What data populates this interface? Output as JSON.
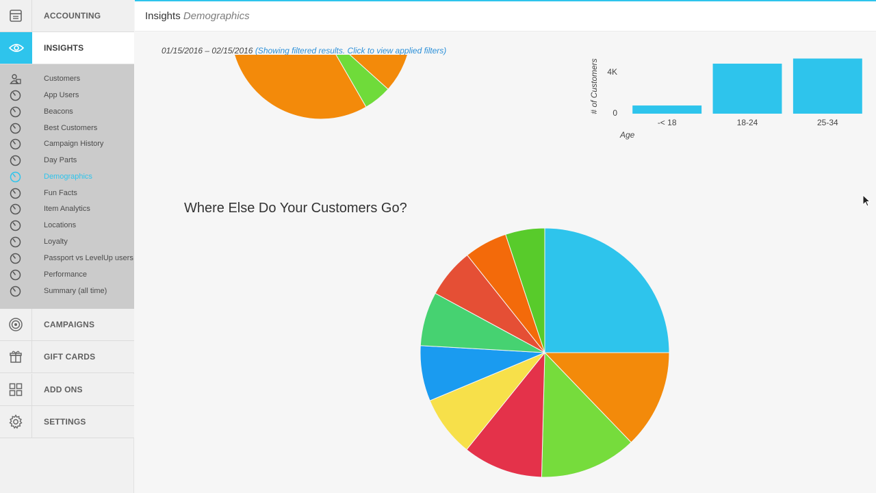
{
  "sidebar": {
    "main_items": [
      {
        "label": "ACCOUNTING",
        "icon": "calculator-icon"
      },
      {
        "label": "INSIGHTS",
        "icon": "eye-icon"
      },
      {
        "label": "CAMPAIGNS",
        "icon": "target-icon"
      },
      {
        "label": "GIFT CARDS",
        "icon": "gift-icon"
      },
      {
        "label": "ADD ONS",
        "icon": "grid-icon"
      },
      {
        "label": "SETTINGS",
        "icon": "gear-icon"
      }
    ],
    "insights_items": [
      {
        "label": "Customers",
        "icon": "users-icon"
      },
      {
        "label": "App Users",
        "icon": "gauge-icon"
      },
      {
        "label": "Beacons",
        "icon": "gauge-icon"
      },
      {
        "label": "Best Customers",
        "icon": "gauge-icon"
      },
      {
        "label": "Campaign History",
        "icon": "gauge-icon"
      },
      {
        "label": "Day Parts",
        "icon": "gauge-icon"
      },
      {
        "label": "Demographics",
        "icon": "gauge-icon"
      },
      {
        "label": "Fun Facts",
        "icon": "gauge-icon"
      },
      {
        "label": "Item Analytics",
        "icon": "gauge-icon"
      },
      {
        "label": "Locations",
        "icon": "gauge-icon"
      },
      {
        "label": "Loyalty",
        "icon": "gauge-icon"
      },
      {
        "label": "Passport vs LevelUp users",
        "icon": "gauge-icon"
      },
      {
        "label": "Performance",
        "icon": "gauge-icon"
      },
      {
        "label": "Summary (all time)",
        "icon": "gauge-icon"
      }
    ],
    "active_main": "INSIGHTS",
    "active_sub": "Demographics"
  },
  "header": {
    "section": "Insights",
    "page": "Demographics"
  },
  "filters": {
    "date_range": "01/15/2016 – 02/15/2016",
    "filter_link": "(Showing filtered results. Click to view applied filters)"
  },
  "main": {
    "section_title": "Where Else Do Your Customers Go?"
  },
  "colors": {
    "accent": "#2ec4ec",
    "link": "#2a8fd8",
    "sidebar_submenu": "#cbcbcb"
  },
  "chart_data": [
    {
      "type": "pie",
      "note": "partially scrolled out of view",
      "slices": [
        {
          "value": 45,
          "color": "#f38a0a"
        },
        {
          "value": 5,
          "color": "#6fdb3a"
        },
        {
          "value": 50,
          "color": "#f38a0a"
        }
      ]
    },
    {
      "type": "bar",
      "categories": [
        "-< 18",
        "18-24",
        "25-34"
      ],
      "values": [
        800,
        4900,
        5400
      ],
      "ylabel": "# of Customers",
      "xlabel": "Age",
      "yticks": [
        "0",
        "4K"
      ],
      "ylim": [
        0,
        5500
      ],
      "color": "#2ec4ec"
    },
    {
      "type": "pie",
      "title": "Where Else Do Your Customers Go?",
      "slices": [
        {
          "value": 25.0,
          "color": "#2ec4ec"
        },
        {
          "value": 12.8,
          "color": "#f38a0a"
        },
        {
          "value": 12.6,
          "color": "#76dc3c"
        },
        {
          "value": 10.4,
          "color": "#e4324a"
        },
        {
          "value": 7.9,
          "color": "#f7e04a"
        },
        {
          "value": 7.2,
          "color": "#1a9bf0"
        },
        {
          "value": 7.0,
          "color": "#46d271"
        },
        {
          "value": 6.4,
          "color": "#e54f35"
        },
        {
          "value": 5.6,
          "color": "#f36a0a"
        },
        {
          "value": 5.1,
          "color": "#58cb2b"
        }
      ]
    }
  ]
}
